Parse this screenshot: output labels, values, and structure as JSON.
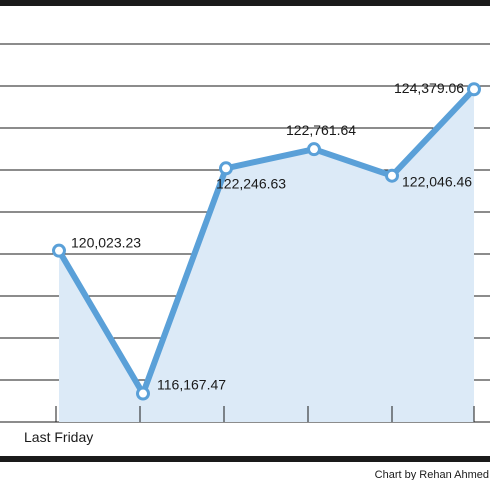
{
  "chart_data": {
    "type": "line",
    "x_tick_labels": [
      "Last Friday",
      "",
      "",
      "",
      "",
      "",
      ""
    ],
    "values": [
      120023.23,
      116167.47,
      122246.63,
      122761.64,
      122046.46,
      124379.06
    ],
    "value_labels": [
      "120,023.23",
      "116,167.47",
      "122,246.63",
      "122,761.64",
      "122,046.46",
      "124,379.06"
    ],
    "ylim": [
      115400,
      125600
    ],
    "grid": true,
    "fill_under_line": true,
    "colors": {
      "line": "#5aa0d8",
      "fill": "#dceaf7",
      "grid": "#1a1a1a",
      "border": "#1a1a1a"
    }
  },
  "credit": "Chart by Rehan Ahmed"
}
